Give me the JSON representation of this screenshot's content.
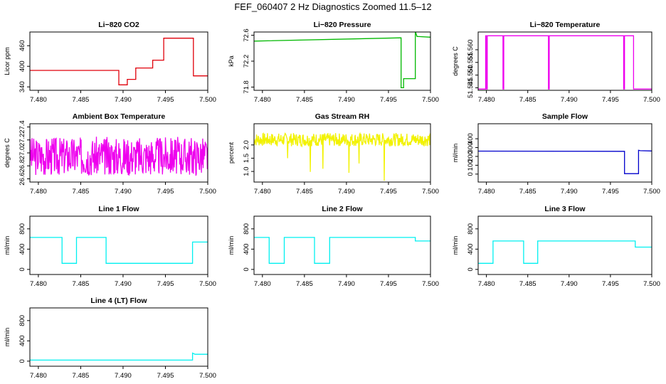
{
  "page_title": "FEF_060407  2 Hz Diagnostics Zoomed 11.5–12",
  "colors": {
    "red": "#e0000a",
    "green": "#00b800",
    "magenta": "#ee00ee",
    "yellow": "#f2f200",
    "blue": "#0000cc",
    "cyan": "#00f0f0"
  },
  "chart_data": [
    {
      "type": "line",
      "title": "Li−820 CO2",
      "ylabel": "Licor ppm",
      "color": "red",
      "xlim": [
        7.479,
        7.5
      ],
      "ylim": [
        330,
        500
      ],
      "xticks": [
        "7.480",
        "7.485",
        "7.490",
        "7.495",
        "7.500"
      ],
      "yticks": [
        "340",
        "400",
        "460"
      ],
      "series": [
        {
          "x": [
            7.479,
            7.4895,
            7.4895,
            7.4905,
            7.4905,
            7.4915,
            7.4915,
            7.4935,
            7.4935,
            7.4948,
            7.4948,
            7.4983,
            7.4983,
            7.5
          ],
          "y": [
            388,
            388,
            346,
            346,
            362,
            362,
            395,
            395,
            418,
            418,
            482,
            482,
            372,
            372
          ]
        }
      ]
    },
    {
      "type": "line",
      "title": "Li−820 Pressure",
      "ylabel": "kPa",
      "color": "green",
      "xlim": [
        7.479,
        7.5
      ],
      "ylim": [
        71.75,
        72.65
      ],
      "xticks": [
        "7.480",
        "7.485",
        "7.490",
        "7.495",
        "7.500"
      ],
      "yticks": [
        "71.8",
        "72.2",
        "72.6"
      ],
      "series": [
        {
          "x": [
            7.479,
            7.4965,
            7.4965,
            7.4968,
            7.4968,
            7.4982,
            7.4982,
            7.4984,
            7.4986,
            7.5
          ],
          "y": [
            72.51,
            72.56,
            71.79,
            71.79,
            71.93,
            71.93,
            72.66,
            72.58,
            72.58,
            72.57
          ]
        }
      ]
    },
    {
      "type": "line",
      "title": "Li−820 Temperature",
      "ylabel": "degrees C",
      "color": "magenta",
      "xlim": [
        7.479,
        7.5
      ],
      "ylim": [
        51.544,
        51.567
      ],
      "xticks": [
        "7.480",
        "7.485",
        "7.490",
        "7.495",
        "7.500"
      ],
      "yticks": [
        "51.545",
        "51.550",
        "51.555",
        "51.560"
      ],
      "series": [
        {
          "x": [
            7.479,
            7.4799,
            7.4799,
            7.48,
            7.48,
            7.4801,
            7.4801,
            7.482,
            7.482,
            7.4821,
            7.4821,
            7.4875,
            7.4875,
            7.4876,
            7.4876,
            7.4966,
            7.4966,
            7.4967,
            7.4967,
            7.4978,
            7.4978,
            7.4979,
            7.4979,
            7.5
          ],
          "y": [
            51.5445,
            51.5445,
            51.5655,
            51.5655,
            51.5445,
            51.5445,
            51.5655,
            51.5655,
            51.5445,
            51.5445,
            51.5655,
            51.5655,
            51.5445,
            51.5445,
            51.5655,
            51.5655,
            51.5445,
            51.5445,
            51.5655,
            51.5655,
            51.5445,
            51.5445,
            51.5445,
            51.5445
          ]
        }
      ]
    },
    {
      "type": "line",
      "title": "Ambient Box Temperature",
      "ylabel": "degrees C",
      "color": "magenta",
      "xlim": [
        7.479,
        7.5
      ],
      "ylim": [
        26.55,
        27.45
      ],
      "xticks": [
        "7.480",
        "7.485",
        "7.490",
        "7.495",
        "7.500"
      ],
      "yticks": [
        "26.6",
        "26.8",
        "27.0",
        "27.2",
        "27.4"
      ],
      "noise": {
        "center": 26.95,
        "amp": 0.3,
        "seed": 3
      }
    },
    {
      "type": "line",
      "title": "Gas Stream RH",
      "ylabel": "percent",
      "color": "yellow",
      "xlim": [
        7.479,
        7.5
      ],
      "ylim": [
        0.6,
        2.8
      ],
      "xticks": [
        "7.480",
        "7.485",
        "7.490",
        "7.495",
        "7.500"
      ],
      "yticks": [
        "1.0",
        "1.5",
        "2.0"
      ],
      "noise": {
        "center": 2.2,
        "amp": 0.25,
        "seed": 7,
        "dips": [
          [
            7.4857,
            0.98
          ],
          [
            7.4872,
            1.1
          ],
          [
            7.4903,
            0.95
          ],
          [
            7.4945,
            0.65
          ],
          [
            7.4915,
            1.3
          ],
          [
            7.483,
            1.5
          ]
        ]
      }
    },
    {
      "type": "line",
      "title": "Sample Flow",
      "ylabel": "ml/min",
      "color": "blue",
      "xlim": [
        7.479,
        7.5
      ],
      "ylim": [
        -90,
        570
      ],
      "xticks": [
        "7.480",
        "7.485",
        "7.490",
        "7.495",
        "7.500"
      ],
      "yticks": [
        "0",
        "100",
        "200",
        "300",
        "400"
      ],
      "series": [
        {
          "x": [
            7.479,
            7.4967,
            7.4967,
            7.4984,
            7.4984,
            7.4986,
            7.5
          ],
          "y": [
            260,
            258,
            5,
            5,
            270,
            265,
            262
          ]
        }
      ]
    },
    {
      "type": "line",
      "title": "Line 1 Flow",
      "ylabel": "ml/min",
      "color": "cyan",
      "xlim": [
        7.479,
        7.5
      ],
      "ylim": [
        -100,
        1050
      ],
      "xticks": [
        "7.480",
        "7.485",
        "7.490",
        "7.495",
        "7.500"
      ],
      "yticks": [
        "0",
        "400",
        "800"
      ],
      "series": [
        {
          "x": [
            7.479,
            7.4828,
            7.4828,
            7.4845,
            7.4845,
            7.488,
            7.488,
            7.4982,
            7.4982,
            7.5
          ],
          "y": [
            630,
            630,
            120,
            120,
            630,
            630,
            120,
            120,
            540,
            540
          ]
        }
      ]
    },
    {
      "type": "line",
      "title": "Line 2 Flow",
      "ylabel": "ml/min",
      "color": "cyan",
      "xlim": [
        7.479,
        7.5
      ],
      "ylim": [
        -100,
        1050
      ],
      "xticks": [
        "7.480",
        "7.485",
        "7.490",
        "7.495",
        "7.500"
      ],
      "yticks": [
        "0",
        "400",
        "800"
      ],
      "series": [
        {
          "x": [
            7.479,
            7.4808,
            7.4808,
            7.4826,
            7.4826,
            7.4862,
            7.4862,
            7.488,
            7.488,
            7.4982,
            7.4982,
            7.5
          ],
          "y": [
            630,
            630,
            120,
            120,
            630,
            630,
            120,
            120,
            630,
            630,
            560,
            560
          ]
        }
      ]
    },
    {
      "type": "line",
      "title": "Line 3 Flow",
      "ylabel": "ml/min",
      "color": "cyan",
      "xlim": [
        7.479,
        7.5
      ],
      "ylim": [
        -100,
        1050
      ],
      "xticks": [
        "7.480",
        "7.485",
        "7.490",
        "7.495",
        "7.500"
      ],
      "yticks": [
        "0",
        "400",
        "800"
      ],
      "series": [
        {
          "x": [
            7.479,
            7.4808,
            7.4808,
            7.4845,
            7.4845,
            7.4862,
            7.4862,
            7.498,
            7.498,
            7.5
          ],
          "y": [
            120,
            120,
            560,
            560,
            120,
            120,
            560,
            560,
            440,
            440
          ]
        }
      ]
    },
    {
      "type": "line",
      "title": "Line 4 (LT) Flow",
      "ylabel": "ml/min",
      "color": "cyan",
      "xlim": [
        7.479,
        7.5
      ],
      "ylim": [
        -100,
        1050
      ],
      "xticks": [
        "7.480",
        "7.485",
        "7.490",
        "7.495",
        "7.500"
      ],
      "yticks": [
        "0",
        "400",
        "800"
      ],
      "series": [
        {
          "x": [
            7.479,
            7.4982,
            7.4982,
            7.4985,
            7.5
          ],
          "y": [
            20,
            20,
            160,
            135,
            135
          ]
        }
      ]
    }
  ]
}
